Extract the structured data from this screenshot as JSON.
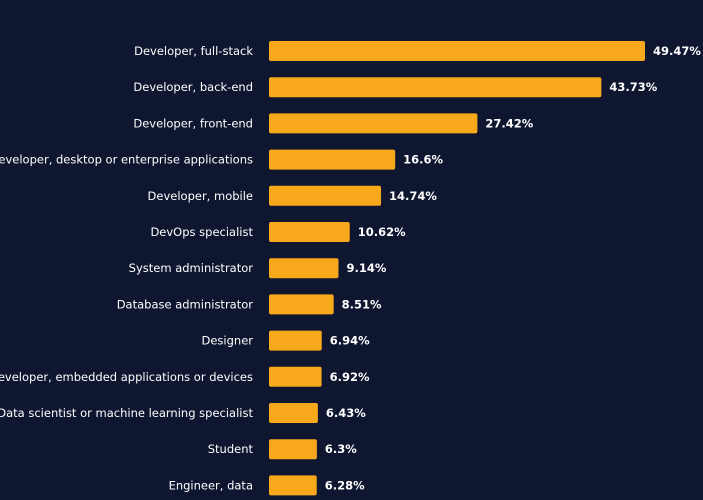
{
  "chart_data": {
    "type": "bar",
    "orientation": "horizontal",
    "categories": [
      "Developer, full-stack",
      "Developer, back-end",
      "Developer, front-end",
      "Developer, desktop or enterprise applications",
      "Developer, mobile",
      "DevOps specialist",
      "System administrator",
      "Database administrator",
      "Designer",
      "Developer, embedded applications or devices",
      "Data scientist or machine learning specialist",
      "Student",
      "Engineer, data"
    ],
    "values": [
      49.47,
      43.73,
      27.42,
      16.6,
      14.74,
      10.62,
      9.14,
      8.51,
      6.94,
      6.92,
      6.43,
      6.3,
      6.28
    ],
    "value_labels": [
      "49.47%",
      "43.73%",
      "27.42%",
      "16.6%",
      "14.74%",
      "10.62%",
      "9.14%",
      "8.51%",
      "6.94%",
      "6.92%",
      "6.43%",
      "6.3%",
      "6.28%"
    ],
    "xlim": [
      0,
      49.47
    ],
    "grid": false,
    "legend": "none"
  },
  "colors": {
    "background": "#0f1630",
    "bar": "#f7a81b",
    "text": "#ffffff"
  }
}
